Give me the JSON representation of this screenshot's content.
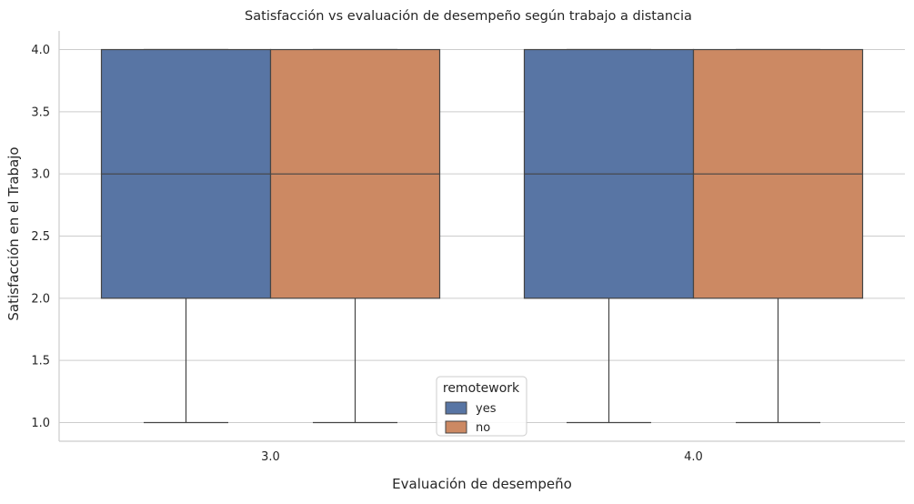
{
  "chart_data": {
    "type": "box",
    "title": "Satisfacción vs evaluación de desempeño según trabajo a distancia",
    "xlabel": "Evaluación de desempeño",
    "ylabel": "Satisfacción en el Trabajo",
    "categories": [
      "3.0",
      "4.0"
    ],
    "ylim": [
      0.85,
      4.15
    ],
    "yticks": [
      1.0,
      1.5,
      2.0,
      2.5,
      3.0,
      3.5,
      4.0
    ],
    "ytick_labels": [
      "1.0",
      "1.5",
      "2.0",
      "2.5",
      "3.0",
      "3.5",
      "4.0"
    ],
    "grid": true,
    "legend": {
      "title": "remotework",
      "placement": "bottom-center"
    },
    "series": [
      {
        "name": "yes",
        "color": "#5875a4",
        "boxes": [
          {
            "category": "3.0",
            "whisker_low": 1.0,
            "q1": 2.0,
            "median": 3.0,
            "q3": 4.0,
            "whisker_high": 4.0
          },
          {
            "category": "4.0",
            "whisker_low": 1.0,
            "q1": 2.0,
            "median": 3.0,
            "q3": 4.0,
            "whisker_high": 4.0
          }
        ]
      },
      {
        "name": "no",
        "color": "#cc8963",
        "boxes": [
          {
            "category": "3.0",
            "whisker_low": 1.0,
            "q1": 2.0,
            "median": 3.0,
            "q3": 4.0,
            "whisker_high": 4.0
          },
          {
            "category": "4.0",
            "whisker_low": 1.0,
            "q1": 2.0,
            "median": 3.0,
            "q3": 4.0,
            "whisker_high": 4.0
          }
        ]
      }
    ]
  }
}
